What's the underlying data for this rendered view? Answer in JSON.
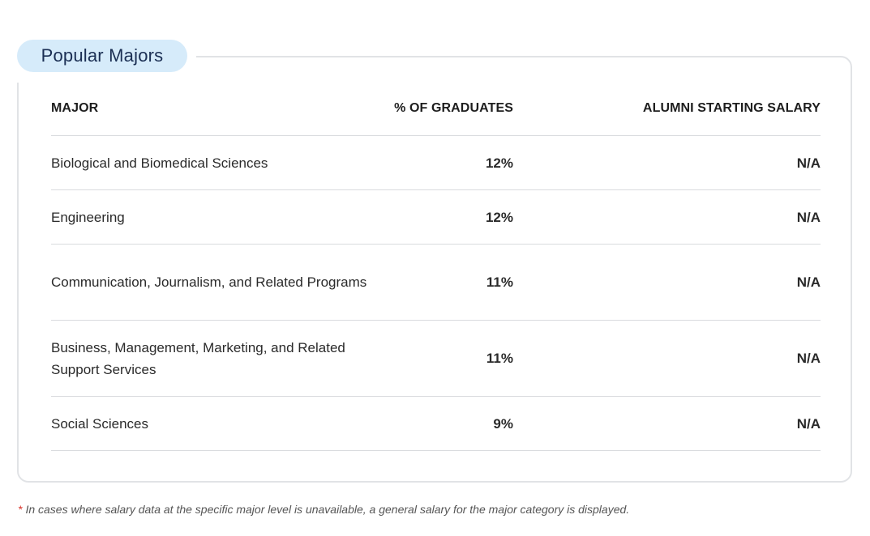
{
  "section": {
    "title": "Popular Majors"
  },
  "table": {
    "headers": {
      "major": "MAJOR",
      "percent": "% OF GRADUATES",
      "salary": "ALUMNI STARTING SALARY"
    },
    "rows": [
      {
        "major": "Biological and Biomedical Sciences",
        "percent": "12%",
        "salary": "N/A"
      },
      {
        "major": "Engineering",
        "percent": "12%",
        "salary": "N/A"
      },
      {
        "major": "Communication, Journalism, and Related Programs",
        "percent": "11%",
        "salary": "N/A"
      },
      {
        "major": "Business, Management, Marketing, and Related Support Services",
        "percent": "11%",
        "salary": "N/A"
      },
      {
        "major": "Social Sciences",
        "percent": "9%",
        "salary": "N/A"
      }
    ]
  },
  "footnote": {
    "marker": "*",
    "text": "In cases where salary data at the specific major level is unavailable, a general salary for the major category is displayed."
  },
  "colors": {
    "pill_background": "#d6ebfa",
    "title_text": "#1b2f54",
    "border": "#e1e3e6",
    "footnote_marker": "#d9342b"
  }
}
